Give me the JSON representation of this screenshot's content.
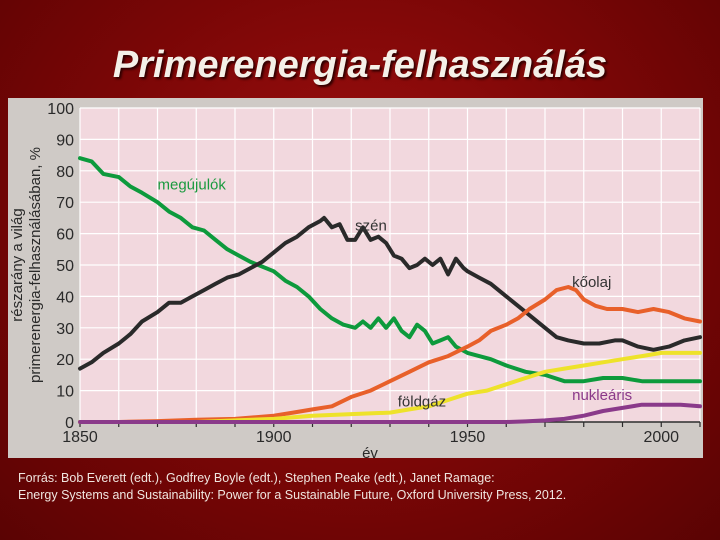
{
  "slide": {
    "title": "Primerenergia-felhasználás",
    "source_line1": "Forrás: Bob Everett (edt.), Godfrey Boyle (edt.), Stephen Peake (edt.), Janet Ramage:",
    "source_line2": "Energy Systems and Sustainability: Power for a Sustainable Future, Oxford University Press, 2012."
  },
  "chart_data": {
    "type": "line",
    "title": "",
    "xlabel": "év",
    "ylabel_line1": "részarány a világ",
    "ylabel_line2": "primerenergia-felhasználásában, %",
    "xlim": [
      1850,
      2010
    ],
    "ylim": [
      0,
      100
    ],
    "xticks": [
      1850,
      1900,
      1950,
      2000
    ],
    "yticks": [
      0,
      10,
      20,
      30,
      40,
      50,
      60,
      70,
      80,
      90,
      100
    ],
    "grid": true,
    "background_color": "#f2d8de",
    "grid_color": "#ffffff",
    "series": [
      {
        "name": "megújulók",
        "color": "#0d9a3c",
        "points": [
          [
            1850,
            84
          ],
          [
            1853,
            83
          ],
          [
            1856,
            79
          ],
          [
            1860,
            78
          ],
          [
            1863,
            75
          ],
          [
            1866,
            73
          ],
          [
            1870,
            70
          ],
          [
            1873,
            67
          ],
          [
            1876,
            65
          ],
          [
            1879,
            62
          ],
          [
            1882,
            61
          ],
          [
            1885,
            58
          ],
          [
            1888,
            55
          ],
          [
            1891,
            53
          ],
          [
            1894,
            51
          ],
          [
            1896,
            50
          ],
          [
            1900,
            48
          ],
          [
            1903,
            45
          ],
          [
            1906,
            43
          ],
          [
            1909,
            40
          ],
          [
            1912,
            36
          ],
          [
            1915,
            33
          ],
          [
            1918,
            31
          ],
          [
            1921,
            30
          ],
          [
            1923,
            32
          ],
          [
            1925,
            30
          ],
          [
            1927,
            33
          ],
          [
            1929,
            30
          ],
          [
            1931,
            33
          ],
          [
            1933,
            29
          ],
          [
            1935,
            27
          ],
          [
            1937,
            31
          ],
          [
            1939,
            29
          ],
          [
            1941,
            25
          ],
          [
            1943,
            26
          ],
          [
            1945,
            27
          ],
          [
            1947,
            24
          ],
          [
            1950,
            22
          ],
          [
            1953,
            21
          ],
          [
            1956,
            20
          ],
          [
            1960,
            18
          ],
          [
            1965,
            16
          ],
          [
            1970,
            15
          ],
          [
            1975,
            13
          ],
          [
            1980,
            13
          ],
          [
            1985,
            14
          ],
          [
            1990,
            14
          ],
          [
            1995,
            13
          ],
          [
            2000,
            13
          ],
          [
            2005,
            13
          ],
          [
            2010,
            13
          ]
        ]
      },
      {
        "name": "szén",
        "color": "#2a2a2a",
        "points": [
          [
            1850,
            17
          ],
          [
            1853,
            19
          ],
          [
            1856,
            22
          ],
          [
            1860,
            25
          ],
          [
            1863,
            28
          ],
          [
            1866,
            32
          ],
          [
            1870,
            35
          ],
          [
            1873,
            38
          ],
          [
            1876,
            38
          ],
          [
            1879,
            40
          ],
          [
            1882,
            42
          ],
          [
            1885,
            44
          ],
          [
            1888,
            46
          ],
          [
            1891,
            47
          ],
          [
            1894,
            49
          ],
          [
            1897,
            51
          ],
          [
            1900,
            54
          ],
          [
            1903,
            57
          ],
          [
            1906,
            59
          ],
          [
            1909,
            62
          ],
          [
            1912,
            64
          ],
          [
            1913,
            65
          ],
          [
            1915,
            62
          ],
          [
            1917,
            63
          ],
          [
            1919,
            58
          ],
          [
            1921,
            58
          ],
          [
            1923,
            62
          ],
          [
            1925,
            58
          ],
          [
            1927,
            59
          ],
          [
            1929,
            57
          ],
          [
            1931,
            53
          ],
          [
            1933,
            52
          ],
          [
            1935,
            49
          ],
          [
            1937,
            50
          ],
          [
            1939,
            52
          ],
          [
            1941,
            50
          ],
          [
            1943,
            52
          ],
          [
            1945,
            47
          ],
          [
            1947,
            52
          ],
          [
            1949,
            49
          ],
          [
            1950,
            48
          ],
          [
            1953,
            46
          ],
          [
            1956,
            44
          ],
          [
            1960,
            40
          ],
          [
            1963,
            37
          ],
          [
            1966,
            34
          ],
          [
            1970,
            30
          ],
          [
            1973,
            27
          ],
          [
            1976,
            26
          ],
          [
            1980,
            25
          ],
          [
            1984,
            25
          ],
          [
            1988,
            26
          ],
          [
            1990,
            26
          ],
          [
            1994,
            24
          ],
          [
            1998,
            23
          ],
          [
            2002,
            24
          ],
          [
            2006,
            26
          ],
          [
            2010,
            27
          ]
        ]
      },
      {
        "name": "kőolaj",
        "color": "#e8602a",
        "points": [
          [
            1850,
            0
          ],
          [
            1860,
            0
          ],
          [
            1870,
            0.3
          ],
          [
            1880,
            0.7
          ],
          [
            1890,
            1
          ],
          [
            1900,
            2
          ],
          [
            1905,
            3
          ],
          [
            1910,
            4
          ],
          [
            1915,
            5
          ],
          [
            1920,
            8
          ],
          [
            1925,
            10
          ],
          [
            1930,
            13
          ],
          [
            1935,
            16
          ],
          [
            1940,
            19
          ],
          [
            1945,
            21
          ],
          [
            1950,
            24
          ],
          [
            1953,
            26
          ],
          [
            1956,
            29
          ],
          [
            1960,
            31
          ],
          [
            1963,
            33
          ],
          [
            1966,
            36
          ],
          [
            1970,
            39
          ],
          [
            1973,
            42
          ],
          [
            1976,
            43
          ],
          [
            1978,
            42
          ],
          [
            1980,
            39
          ],
          [
            1983,
            37
          ],
          [
            1986,
            36
          ],
          [
            1990,
            36
          ],
          [
            1994,
            35
          ],
          [
            1998,
            36
          ],
          [
            2002,
            35
          ],
          [
            2006,
            33
          ],
          [
            2010,
            32
          ]
        ]
      },
      {
        "name": "földgáz",
        "color": "#eee22a",
        "points": [
          [
            1850,
            0
          ],
          [
            1880,
            0
          ],
          [
            1890,
            0.5
          ],
          [
            1900,
            1
          ],
          [
            1910,
            2
          ],
          [
            1920,
            2.5
          ],
          [
            1930,
            3
          ],
          [
            1935,
            4
          ],
          [
            1940,
            5
          ],
          [
            1945,
            7
          ],
          [
            1950,
            9
          ],
          [
            1955,
            10
          ],
          [
            1960,
            12
          ],
          [
            1965,
            14
          ],
          [
            1970,
            16
          ],
          [
            1975,
            17
          ],
          [
            1980,
            18
          ],
          [
            1985,
            19
          ],
          [
            1990,
            20
          ],
          [
            1995,
            21
          ],
          [
            2000,
            22
          ],
          [
            2005,
            22
          ],
          [
            2010,
            22
          ]
        ]
      },
      {
        "name": "nukleáris",
        "color": "#8a3a8a",
        "points": [
          [
            1850,
            0
          ],
          [
            1960,
            0
          ],
          [
            1965,
            0.2
          ],
          [
            1970,
            0.5
          ],
          [
            1975,
            1
          ],
          [
            1980,
            2
          ],
          [
            1985,
            3.5
          ],
          [
            1990,
            4.5
          ],
          [
            1995,
            5.5
          ],
          [
            2000,
            5.5
          ],
          [
            2005,
            5.5
          ],
          [
            2010,
            5
          ]
        ]
      }
    ],
    "labels": [
      {
        "text": "megújulók",
        "x": 1870,
        "y": 74,
        "color": "#1b9a3f",
        "anchor": "start"
      },
      {
        "text": "szén",
        "x": 1921,
        "y": 61,
        "color": "#333333",
        "anchor": "start"
      },
      {
        "text": "kőolaj",
        "x": 1977,
        "y": 43,
        "color": "#333333",
        "anchor": "start"
      },
      {
        "text": "földgáz",
        "x": 1932,
        "y": 5,
        "color": "#333333",
        "anchor": "start"
      },
      {
        "text": "nukleáris",
        "x": 1977,
        "y": 7,
        "color": "#8a3a8a",
        "anchor": "start"
      }
    ]
  }
}
